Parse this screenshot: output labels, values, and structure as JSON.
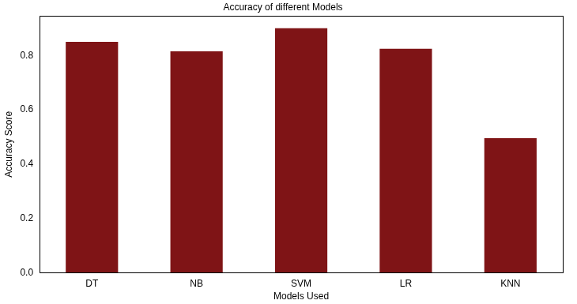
{
  "chart_data": {
    "type": "bar",
    "title": "Accuracy of different Models",
    "x_label": "Models Used",
    "y_label": "Accuracy Score",
    "categories": [
      "DT",
      "NB",
      "SVM",
      "LR",
      "KNN"
    ],
    "values": [
      0.85,
      0.815,
      0.9,
      0.825,
      0.495
    ],
    "color": "#7f1416",
    "ylim": [
      0,
      0.945
    ],
    "yticks": [
      {
        "value": 0,
        "label": "0.0"
      },
      0.2,
      0.4,
      0.6,
      0.8
    ],
    "grid": false
  }
}
